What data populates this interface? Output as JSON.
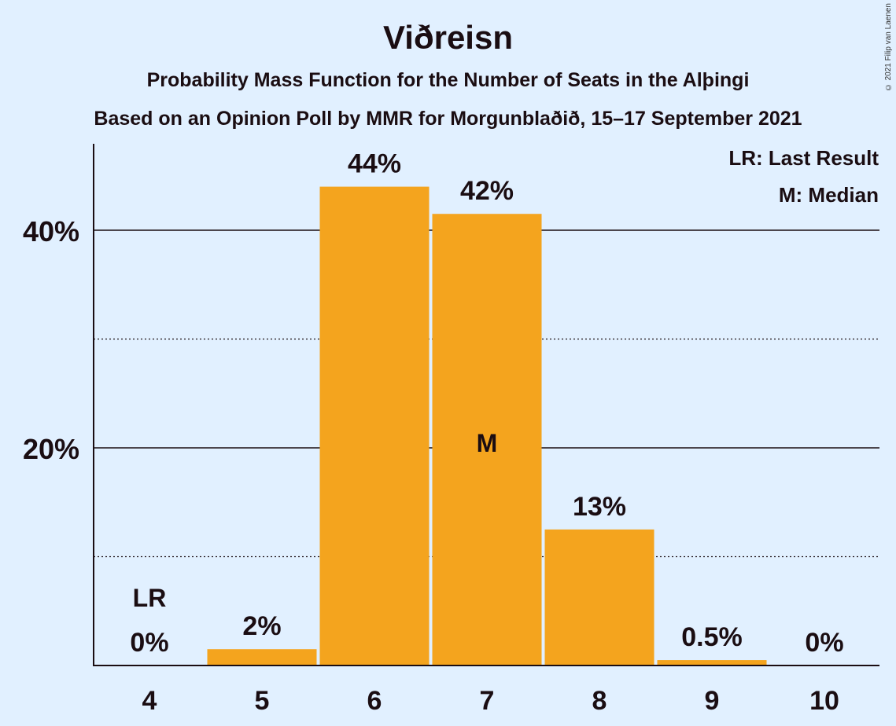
{
  "chart_data": {
    "type": "bar",
    "title": "Viðreisn",
    "subtitle": "Probability Mass Function for the Number of Seats in the Alþingi",
    "subtitle2": "Based on an Opinion Poll by MMR for Morgunblaðið, 15–17 September 2021",
    "copyright": "© 2021 Filip van Laenen",
    "categories": [
      "4",
      "5",
      "6",
      "7",
      "8",
      "9",
      "10"
    ],
    "values": [
      0,
      1.5,
      44,
      41.5,
      12.5,
      0.5,
      0
    ],
    "value_labels": [
      "0%",
      "2%",
      "44%",
      "42%",
      "13%",
      "0.5%",
      "0%"
    ],
    "ylim": [
      0,
      48
    ],
    "y_major_ticks": [
      20,
      40
    ],
    "y_tick_labels": [
      "20%",
      "40%"
    ],
    "y_minor_gridlines": [
      10,
      30
    ],
    "last_result": {
      "category": "4",
      "label": "LR"
    },
    "median": {
      "category": "7",
      "label": "M"
    },
    "legend": [
      "LR: Last Result",
      "M: Median"
    ],
    "legend_position": "top-right",
    "bar_color": "#f4a41e",
    "background_color": "#e1f0ff"
  }
}
